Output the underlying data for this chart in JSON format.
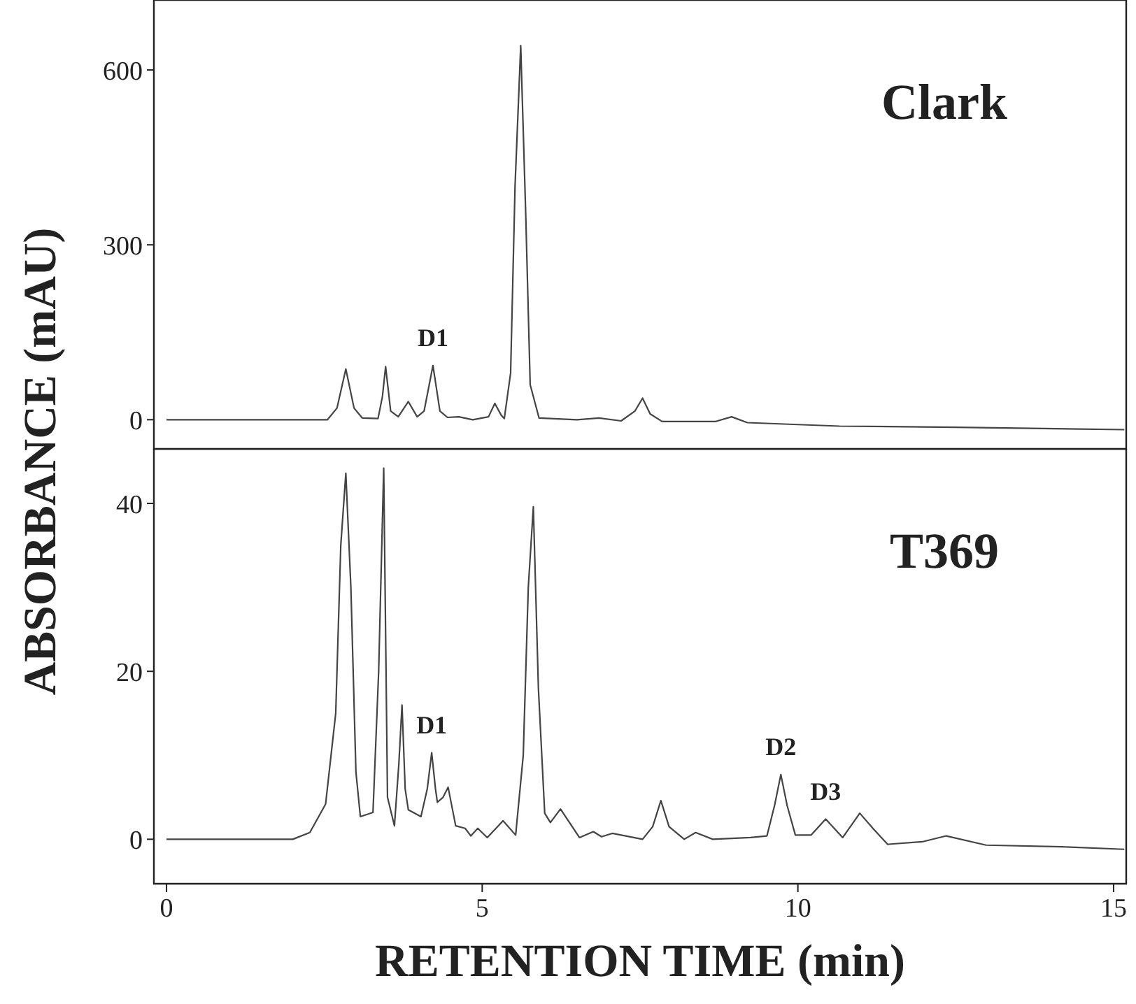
{
  "chart_data": [
    {
      "type": "line",
      "title": "Clark",
      "ylabel": "ABSORBANCE (mAU)",
      "xlim": [
        -0.2,
        15.2
      ],
      "ylim": [
        -50,
        720
      ],
      "yticks": [
        0,
        300,
        600
      ],
      "tick_labels": "y",
      "marker": "none",
      "line_style": "solid",
      "annotations": [
        {
          "text": "D1",
          "x": 4.22,
          "y": 93
        }
      ],
      "series": [
        {
          "color": "#444444",
          "x": [
            0,
            2.55,
            2.7,
            2.84,
            2.97,
            3.1,
            3.35,
            3.42,
            3.47,
            3.55,
            3.67,
            3.83,
            3.97,
            4.08,
            4.22,
            4.33,
            4.45,
            4.63,
            4.85,
            5.1,
            5.2,
            5.3,
            5.35,
            5.45,
            5.52,
            5.61,
            5.69,
            5.76,
            5.9,
            6.5,
            6.85,
            7.2,
            7.42,
            7.54,
            7.66,
            7.85,
            8.7,
            8.95,
            9.2,
            10.66,
            12.5,
            15.17
          ],
          "values": [
            0,
            0,
            20,
            87,
            20,
            3,
            2,
            40,
            91,
            15,
            5,
            31,
            5,
            15,
            93,
            15,
            4,
            5,
            0,
            5,
            28,
            8,
            2,
            80,
            400,
            642,
            350,
            60,
            3,
            0,
            3,
            -2,
            15,
            37,
            10,
            -3,
            -3,
            5,
            -5,
            -11,
            -13,
            -17
          ]
        }
      ]
    },
    {
      "type": "line",
      "title": "T369",
      "xlabel": "RETENTION TIME (min)",
      "xlim": [
        -0.2,
        15.2
      ],
      "ylim": [
        -5.3,
        46.5
      ],
      "xticks": [
        0,
        5,
        10,
        15
      ],
      "yticks": [
        0,
        20,
        40
      ],
      "marker": "none",
      "line_style": "solid",
      "annotations": [
        {
          "text": "D1",
          "x": 4.2,
          "y": 10.3
        },
        {
          "text": "D2",
          "x": 9.73,
          "y": 7.7
        },
        {
          "text": "D3",
          "x": 10.44,
          "y": 2.4
        }
      ],
      "series": [
        {
          "color": "#444444",
          "x": [
            0,
            2.0,
            2.27,
            2.52,
            2.68,
            2.76,
            2.84,
            2.92,
            3.0,
            3.07,
            3.27,
            3.36,
            3.44,
            3.5,
            3.61,
            3.68,
            3.73,
            3.78,
            3.83,
            4.03,
            4.13,
            4.2,
            4.26,
            4.29,
            4.38,
            4.46,
            4.58,
            4.73,
            4.82,
            4.93,
            5.08,
            5.33,
            5.53,
            5.65,
            5.73,
            5.81,
            5.89,
            5.99,
            6.08,
            6.24,
            6.54,
            6.76,
            6.89,
            7.06,
            7.54,
            7.7,
            7.83,
            7.96,
            8.2,
            8.38,
            8.65,
            9.25,
            9.51,
            9.63,
            9.73,
            9.83,
            9.96,
            10.21,
            10.44,
            10.71,
            10.98,
            11.2,
            11.42,
            11.97,
            12.35,
            12.98,
            14.18,
            15.17
          ],
          "values": [
            0,
            0,
            0.8,
            4.2,
            15,
            35,
            43.6,
            30,
            8,
            2.7,
            3.2,
            20,
            44.2,
            5,
            1.6,
            9,
            16,
            6,
            3.5,
            2.7,
            6,
            10.3,
            6,
            4.4,
            5,
            6.2,
            1.6,
            1.3,
            0.4,
            1.3,
            0.2,
            2.2,
            0.5,
            10,
            30,
            39.6,
            18,
            3.1,
            2,
            3.6,
            0.2,
            0.9,
            0.3,
            0.7,
            0,
            1.5,
            4.6,
            1.5,
            0,
            0.8,
            0,
            0.2,
            0.4,
            4,
            7.7,
            4,
            0.5,
            0.5,
            2.4,
            0.2,
            3.1,
            1.2,
            -0.6,
            -0.3,
            0.4,
            -0.7,
            -0.9,
            -1.2
          ]
        }
      ]
    }
  ]
}
